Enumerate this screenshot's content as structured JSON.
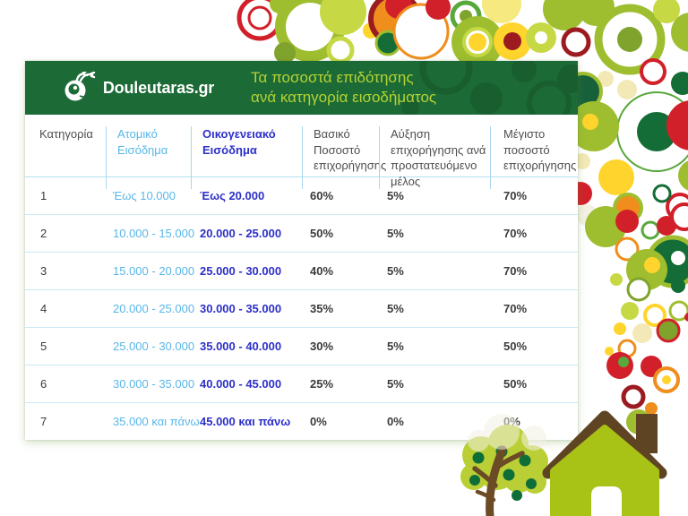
{
  "brand": {
    "logo_text": "Douleutaras.gr",
    "logo_icon": "snail-bee-mascot-icon"
  },
  "header": {
    "title_line1": "Τα ποσοστά επιδότησης",
    "title_line2": "ανά κατηγορία εισοδήματος"
  },
  "table": {
    "columns": [
      {
        "label": "Κατηγορία"
      },
      {
        "label": "Ατομικό Εισόδημα"
      },
      {
        "label": "Οικογενειακό Εισόδημα"
      },
      {
        "label": "Βασικό Ποσοστό επιχορήγησης"
      },
      {
        "label": "Αύξηση επιχορήγησης ανά προστατευόμενο μέλος"
      },
      {
        "label": "Μέγιστο ποσοστό επιχορήγησης"
      }
    ],
    "rows": [
      [
        "1",
        "Έως 10.000",
        "Έως 20.000",
        "60%",
        "5%",
        "70%"
      ],
      [
        "2",
        "10.000 - 15.000",
        "20.000 - 25.000",
        "50%",
        "5%",
        "70%"
      ],
      [
        "3",
        "15.000 - 20.000",
        "25.000 - 30.000",
        "40%",
        "5%",
        "70%"
      ],
      [
        "4",
        "20.000 - 25.000",
        "30.000 - 35.000",
        "35%",
        "5%",
        "70%"
      ],
      [
        "5",
        "25.000 - 30.000",
        "35.000 - 40.000",
        "30%",
        "5%",
        "50%"
      ],
      [
        "6",
        "30.000 - 35.000",
        "40.000 - 45.000",
        "25%",
        "5%",
        "50%"
      ],
      [
        "7",
        "35.000 και πάνω",
        "45.000 και πάνω",
        "0%",
        "0%",
        "0%"
      ]
    ]
  },
  "icons": {
    "house": "house-icon",
    "tree": "tree-icon"
  },
  "colors": {
    "header_green": "#1c6a36",
    "header_circle": "#185e2e",
    "title_green": "#b5d333",
    "sky_blue": "#59b7e8",
    "royal_blue": "#2d2fc8",
    "text_dark": "#3a3a3a",
    "divider_blue": "#a9d8ee",
    "w": "#ffffff",
    "lime": "#9ebe2f",
    "lime2": "#c6d944",
    "olive": "#7fa32c",
    "green": "#146c36",
    "green2": "#17603a",
    "grn3": "#58a83c",
    "yel": "#ffd42d",
    "yel2": "#f5e97f",
    "cream": "#f3e9b6",
    "cream2": "#f4f1e3",
    "org": "#ef8d1d",
    "red": "#d2202a",
    "red2": "#9c1b20",
    "house_body": "#a8c216",
    "wood_brown": "#5f4423",
    "foliage": "#b9cf35",
    "fruit": "#0e6e38"
  }
}
